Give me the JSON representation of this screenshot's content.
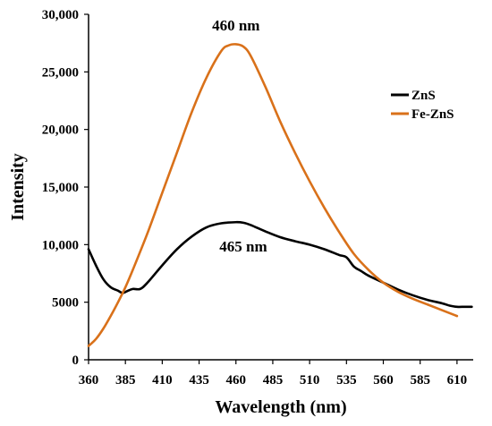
{
  "chart_data": {
    "type": "line",
    "title": "",
    "xlabel": "Wavelength (nm)",
    "ylabel": "Intensity",
    "xlim": [
      360,
      621
    ],
    "ylim": [
      0,
      30000
    ],
    "x_ticks": [
      360,
      385,
      410,
      435,
      460,
      485,
      510,
      535,
      560,
      585,
      610
    ],
    "y_ticks": [
      0,
      5000,
      10000,
      15000,
      20000,
      25000,
      30000
    ],
    "y_tick_labels": [
      "0",
      "5000",
      "10,000",
      "15,000",
      "20,000",
      "25,000",
      "30,000"
    ],
    "grid": false,
    "legend_position": "right",
    "series": [
      {
        "name": "ZnS",
        "color": "#000000",
        "x": [
          360,
          365,
          370,
          375,
          380,
          383,
          386,
          390,
          395,
          400,
          410,
          420,
          430,
          440,
          450,
          460,
          465,
          470,
          480,
          490,
          500,
          510,
          520,
          530,
          535,
          540,
          545,
          550,
          560,
          570,
          580,
          590,
          600,
          605,
          610,
          615,
          620
        ],
        "y": [
          9600,
          8200,
          7000,
          6300,
          6000,
          5800,
          5950,
          6150,
          6150,
          6700,
          8200,
          9600,
          10700,
          11500,
          11850,
          11950,
          11900,
          11700,
          11150,
          10650,
          10300,
          10000,
          9600,
          9100,
          8900,
          8100,
          7700,
          7300,
          6700,
          6100,
          5600,
          5200,
          4900,
          4700,
          4600,
          4600,
          4600
        ]
      },
      {
        "name": "Fe-ZnS",
        "color": "#D9711A",
        "x": [
          360,
          365,
          370,
          375,
          380,
          385,
          390,
          400,
          410,
          420,
          430,
          440,
          450,
          455,
          460,
          465,
          470,
          480,
          490,
          500,
          510,
          520,
          530,
          540,
          550,
          560,
          570,
          580,
          590,
          600,
          610
        ],
        "y": [
          1200,
          1800,
          2700,
          3800,
          5000,
          6300,
          7800,
          11000,
          14500,
          18000,
          21500,
          24500,
          26800,
          27300,
          27400,
          27200,
          26400,
          23700,
          20700,
          18000,
          15500,
          13200,
          11100,
          9200,
          7800,
          6700,
          5900,
          5300,
          4800,
          4300,
          3800
        ]
      }
    ],
    "annotations": [
      {
        "text": "460 nm",
        "x": 460,
        "y": 28600
      },
      {
        "text": "465 nm",
        "x": 465,
        "y": 9400
      }
    ]
  }
}
